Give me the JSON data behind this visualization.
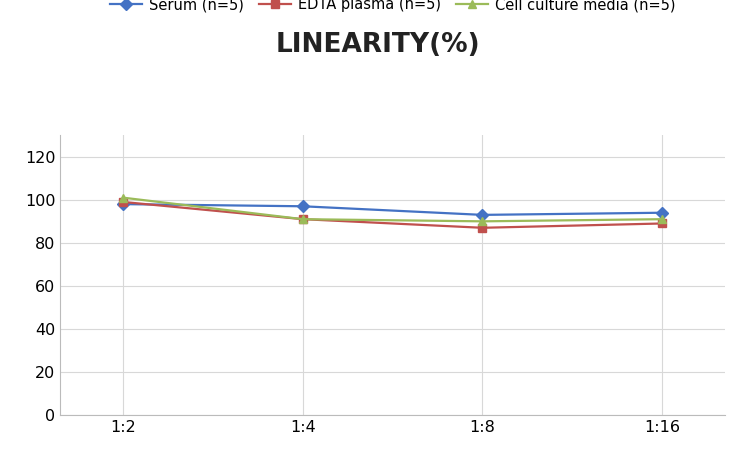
{
  "title": "LINEARITY(%)",
  "x_labels": [
    "1:2",
    "1:4",
    "1:8",
    "1:16"
  ],
  "x_positions": [
    0,
    1,
    2,
    3
  ],
  "series": [
    {
      "label": "Serum (n=5)",
      "values": [
        98,
        97,
        93,
        94
      ],
      "color": "#4472C4",
      "marker": "D"
    },
    {
      "label": "EDTA plasma (n=5)",
      "values": [
        99,
        91,
        87,
        89
      ],
      "color": "#C0504D",
      "marker": "s"
    },
    {
      "label": "Cell culture media (n=5)",
      "values": [
        101,
        91,
        90,
        91
      ],
      "color": "#9BBB59",
      "marker": "^"
    }
  ],
  "ylim": [
    0,
    130
  ],
  "yticks": [
    0,
    20,
    40,
    60,
    80,
    100,
    120
  ],
  "title_fontsize": 19,
  "legend_fontsize": 10.5,
  "tick_fontsize": 11.5,
  "bg_color": "#FFFFFF",
  "grid_color": "#D8D8D8"
}
